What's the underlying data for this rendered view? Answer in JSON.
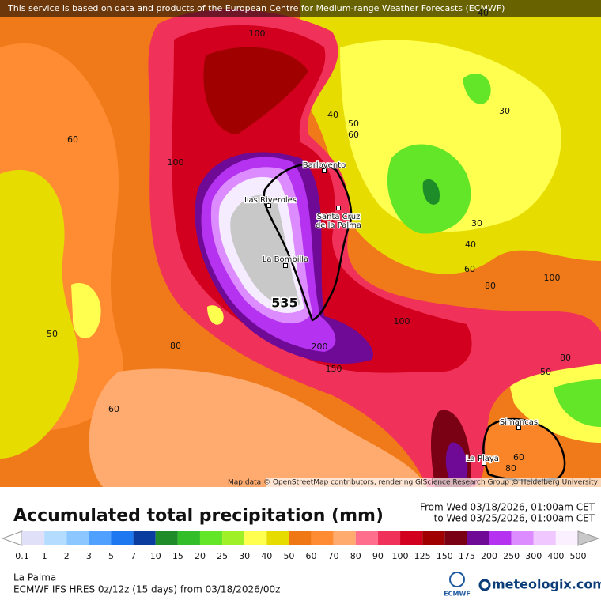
{
  "header": {
    "notice": "This service is based on data and products of the European Centre for Medium-range Weather Forecasts (ECMWF)"
  },
  "map": {
    "attribution": "Map data © OpenStreetMap contributors, rendering GIScience Research Group @ Heidelberg University",
    "max_label": "535",
    "places": [
      {
        "label": [
          "Barlovento"
        ]
      },
      {
        "label": [
          "Las Riveroles"
        ]
      },
      {
        "label": [
          "Santa Cruz",
          "de la Palma"
        ]
      },
      {
        "label": [
          "La Bombilla"
        ]
      },
      {
        "label": [
          "Simancas"
        ]
      },
      {
        "label": [
          "La Playa"
        ]
      }
    ],
    "contour_labels": [
      "100",
      "60",
      "100",
      "40",
      "50",
      "60",
      "30",
      "30",
      "40",
      "60",
      "80",
      "100",
      "100",
      "80",
      "50",
      "60",
      "200",
      "150",
      "80",
      "50",
      "40",
      "60",
      "80"
    ]
  },
  "legend": {
    "title": "Accumulated total precipitation (mm)",
    "period_from": "From Wed 03/18/2026, 01:00am CET",
    "period_to": "to Wed 03/25/2026, 01:00am CET",
    "levels": [
      0.1,
      1,
      2,
      3,
      5,
      7,
      10,
      15,
      20,
      25,
      30,
      40,
      50,
      60,
      70,
      80,
      90,
      100,
      125,
      150,
      175,
      200,
      250,
      300,
      400,
      500
    ],
    "colors": [
      "#e0e0f8",
      "#b4dcff",
      "#8cc8ff",
      "#50a0ff",
      "#1e78f0",
      "#0a3ca0",
      "#1e8c28",
      "#32be28",
      "#64e628",
      "#a0f028",
      "#ffff50",
      "#e6dc00",
      "#f07814",
      "#ff8c32",
      "#ffaa6e",
      "#ff6e8c",
      "#f0325a",
      "#d2001e",
      "#a00000",
      "#7a0014",
      "#6e0a96",
      "#b432f0",
      "#dc8cff",
      "#f0c8ff",
      "#faf0ff"
    ],
    "under_color": "#ffffff",
    "over_color": "#c8c8c8"
  },
  "footer": {
    "location": "La Palma",
    "model": "ECMWF IFS HRES 0z/12z (15 days) from  03/18/2026/00z",
    "ecmwf_logo": "ECMWF",
    "brand": "meteologix.com"
  }
}
